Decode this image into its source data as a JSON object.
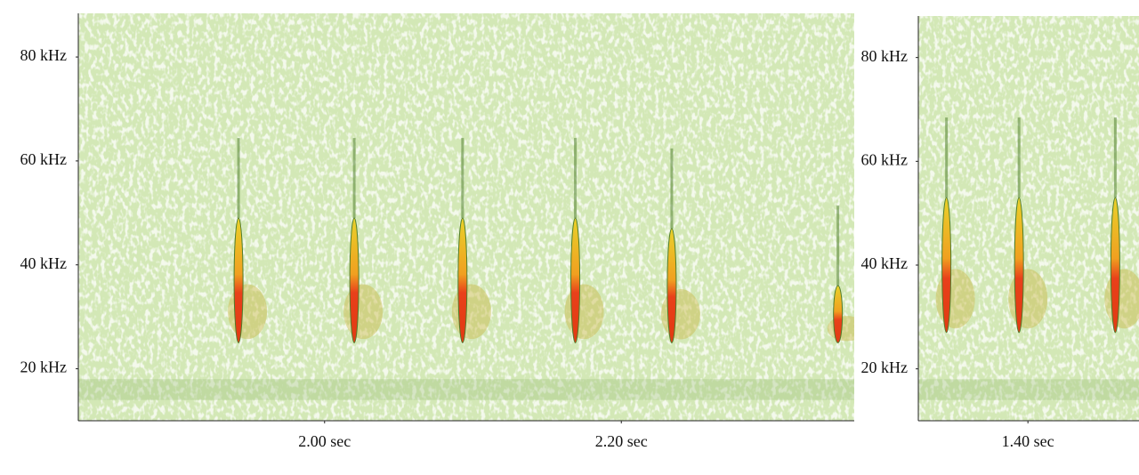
{
  "chart_data": [
    {
      "type": "spectrogram",
      "xlim": [
        1.834,
        2.357
      ],
      "ylim": [
        10,
        88.4
      ],
      "xticks": [
        {
          "value": 2.0,
          "label": "2.00 sec"
        },
        {
          "value": 2.2,
          "label": "2.20 sec"
        }
      ],
      "yticks": [
        {
          "value": 20,
          "label": "20 kHz"
        },
        {
          "value": 40,
          "label": "40 kHz"
        },
        {
          "value": 60,
          "label": "60 kHz"
        },
        {
          "value": 80,
          "label": "80 kHz"
        }
      ],
      "calls": [
        {
          "time": 1.942,
          "f_low": 25,
          "f_high": 49
        },
        {
          "time": 2.02,
          "f_low": 25,
          "f_high": 49
        },
        {
          "time": 2.093,
          "f_low": 25,
          "f_high": 49
        },
        {
          "time": 2.169,
          "f_low": 25,
          "f_high": 49
        },
        {
          "time": 2.234,
          "f_low": 25,
          "f_high": 47
        },
        {
          "time": 2.346,
          "f_low": 25,
          "f_high": 36
        }
      ]
    },
    {
      "type": "spectrogram",
      "xlim": [
        1.326,
        1.475
      ],
      "ylim": [
        10,
        88
      ],
      "xticks": [
        {
          "value": 1.4,
          "label": "1.40 sec"
        }
      ],
      "yticks": [
        {
          "value": 20,
          "label": "20 kHz"
        },
        {
          "value": 40,
          "label": "40 kHz"
        },
        {
          "value": 60,
          "label": "60 kHz"
        },
        {
          "value": 80,
          "label": "80 kHz"
        }
      ],
      "calls": [
        {
          "time": 1.345,
          "f_low": 27,
          "f_high": 53
        },
        {
          "time": 1.394,
          "f_low": 27,
          "f_high": 53
        },
        {
          "time": 1.459,
          "f_low": 27,
          "f_high": 53
        }
      ]
    }
  ]
}
